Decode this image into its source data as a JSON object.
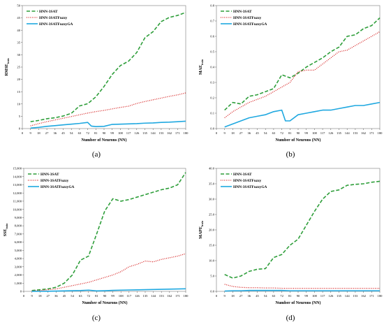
{
  "figure": {
    "captions": [
      "(a)",
      "(b)",
      "(c)",
      "(d)"
    ]
  },
  "series_style": [
    {
      "name": "HNN-3SAT",
      "color": "#2e9e3a",
      "dash": "5,2.5",
      "width": 1.6
    },
    {
      "name": "HNN-3SATFuzzy",
      "color": "#d62020",
      "dash": "1,1.6",
      "width": 1.3
    },
    {
      "name": "HNN-3SATFuzzyGA",
      "color": "#1fa8e0",
      "dash": "",
      "width": 1.6
    }
  ],
  "chart_data": [
    {
      "type": "line",
      "panel": "(a)",
      "xlabel": "Number of Neurons (NN)",
      "ylabel_main": "RMSE",
      "ylabel_sub": "train",
      "x": [
        9,
        18,
        27,
        36,
        45,
        54,
        63,
        72,
        81,
        90,
        99,
        108,
        117,
        126,
        135,
        144,
        153,
        162,
        171,
        180
      ],
      "xticks": [
        0,
        9,
        18,
        27,
        36,
        45,
        54,
        63,
        72,
        81,
        90,
        99,
        108,
        117,
        126,
        135,
        144,
        153,
        162,
        171,
        180
      ],
      "xlim": [
        0,
        180
      ],
      "ylim": [
        0,
        50
      ],
      "yticks": [
        0,
        5,
        10,
        15,
        20,
        25,
        30,
        35,
        40,
        45,
        50
      ],
      "ytick_labels": [
        "0",
        "5",
        "10",
        "15",
        "20",
        "25",
        "30",
        "35",
        "40",
        "45",
        "50"
      ],
      "legend": "top-left",
      "series": [
        {
          "name": "HNN-3SAT",
          "x": [
            9,
            18,
            27,
            36,
            45,
            54,
            63,
            72,
            81,
            90,
            99,
            108,
            117,
            126,
            135,
            144,
            153,
            162,
            171,
            180
          ],
          "values": [
            2.8,
            3.3,
            4.0,
            4.4,
            5.1,
            6.2,
            9.2,
            10.1,
            12.9,
            17.1,
            22.0,
            25.6,
            27.4,
            30.9,
            36.9,
            39.4,
            43.5,
            45.2,
            46.0,
            47.2
          ]
        },
        {
          "name": "HNN-3SATFuzzy",
          "x": [
            9,
            18,
            27,
            36,
            45,
            54,
            63,
            72,
            81,
            90,
            99,
            108,
            117,
            126,
            135,
            144,
            153,
            162,
            171,
            180
          ],
          "values": [
            1.1,
            2.0,
            2.8,
            3.5,
            4.2,
            4.9,
            5.6,
            6.3,
            6.9,
            7.4,
            8.0,
            8.6,
            9.1,
            10.2,
            11.0,
            11.7,
            12.4,
            13.1,
            13.7,
            14.5
          ]
        },
        {
          "name": "HNN-3SATFuzzyGA",
          "x": [
            9,
            18,
            27,
            36,
            45,
            54,
            63,
            72,
            76,
            81,
            90,
            99,
            108,
            117,
            126,
            135,
            144,
            153,
            162,
            171,
            180
          ],
          "values": [
            0.2,
            0.5,
            0.9,
            1.2,
            1.5,
            1.8,
            2.1,
            2.5,
            1.0,
            0.8,
            0.9,
            1.7,
            1.8,
            1.9,
            2.0,
            2.2,
            2.3,
            2.5,
            2.6,
            2.8,
            3.0
          ]
        }
      ]
    },
    {
      "type": "line",
      "panel": "(b)",
      "xlabel": "Number of Neurons (NN)",
      "ylabel_main": "MAE",
      "ylabel_sub": "train",
      "x": [
        9,
        18,
        27,
        36,
        45,
        54,
        63,
        72,
        81,
        90,
        99,
        108,
        117,
        126,
        135,
        144,
        153,
        162,
        171,
        180
      ],
      "xticks": [
        0,
        9,
        18,
        27,
        36,
        45,
        54,
        63,
        72,
        81,
        90,
        99,
        108,
        117,
        126,
        135,
        144,
        153,
        162,
        171,
        180
      ],
      "xlim": [
        0,
        180
      ],
      "ylim": [
        0,
        0.8
      ],
      "yticks": [
        0,
        0.1,
        0.2,
        0.3,
        0.4,
        0.5,
        0.6,
        0.7,
        0.8
      ],
      "ytick_labels": [
        "0.0",
        "0.1",
        "0.2",
        "0.3",
        "0.4",
        "0.5",
        "0.6",
        "0.7",
        "0.8"
      ],
      "legend": "top-left",
      "series": [
        {
          "name": "HNN-3SAT",
          "x": [
            9,
            18,
            27,
            36,
            45,
            54,
            63,
            72,
            81,
            90,
            99,
            108,
            117,
            126,
            135,
            144,
            153,
            162,
            171,
            180
          ],
          "values": [
            0.12,
            0.17,
            0.16,
            0.21,
            0.22,
            0.24,
            0.26,
            0.35,
            0.33,
            0.36,
            0.4,
            0.43,
            0.46,
            0.5,
            0.53,
            0.6,
            0.61,
            0.65,
            0.67,
            0.72
          ]
        },
        {
          "name": "HNN-3SATFuzzy",
          "x": [
            9,
            18,
            27,
            36,
            45,
            54,
            63,
            72,
            81,
            90,
            99,
            108,
            117,
            126,
            135,
            144,
            153,
            162,
            171,
            180
          ],
          "values": [
            0.07,
            0.11,
            0.14,
            0.17,
            0.19,
            0.21,
            0.24,
            0.27,
            0.3,
            0.37,
            0.38,
            0.38,
            0.42,
            0.46,
            0.5,
            0.51,
            0.54,
            0.57,
            0.6,
            0.63
          ]
        },
        {
          "name": "HNN-3SATFuzzyGA",
          "x": [
            9,
            18,
            27,
            36,
            45,
            54,
            63,
            72,
            76,
            81,
            90,
            99,
            108,
            117,
            126,
            135,
            144,
            153,
            162,
            171,
            180
          ],
          "values": [
            0.01,
            0.03,
            0.05,
            0.07,
            0.08,
            0.09,
            0.11,
            0.12,
            0.05,
            0.05,
            0.09,
            0.1,
            0.11,
            0.12,
            0.12,
            0.13,
            0.14,
            0.15,
            0.15,
            0.16,
            0.17
          ]
        }
      ]
    },
    {
      "type": "line",
      "panel": "(c)",
      "xlabel": "Number of Neurons (NN)",
      "ylabel_main": "SSE",
      "ylabel_sub": "train",
      "x": [
        9,
        18,
        27,
        36,
        45,
        54,
        63,
        72,
        81,
        90,
        99,
        108,
        117,
        126,
        135,
        144,
        153,
        162,
        171,
        180
      ],
      "xticks": [
        0,
        9,
        18,
        27,
        36,
        45,
        54,
        63,
        72,
        81,
        90,
        99,
        108,
        117,
        126,
        135,
        144,
        153,
        162,
        171,
        180
      ],
      "xlim": [
        0,
        180
      ],
      "ylim": [
        0,
        15000
      ],
      "yticks": [
        0,
        1000,
        2000,
        3000,
        4000,
        5000,
        6000,
        7000,
        8000,
        9000,
        10000,
        11000,
        12000,
        13000,
        14000,
        15000
      ],
      "ytick_labels": [
        "0",
        "1,000",
        "2,000",
        "3,000",
        "4,000",
        "5,000",
        "6,000",
        "7,000",
        "8,000",
        "9,000",
        "10,000",
        "11,000",
        "12,000",
        "13,000",
        "14,000",
        "15,000"
      ],
      "legend": "top-left",
      "series": [
        {
          "name": "HNN-3SAT",
          "x": [
            9,
            18,
            27,
            36,
            45,
            54,
            63,
            72,
            81,
            90,
            99,
            108,
            117,
            126,
            135,
            144,
            153,
            162,
            171,
            180
          ],
          "values": [
            100,
            200,
            300,
            500,
            1000,
            2000,
            3800,
            4300,
            7000,
            9800,
            11300,
            11000,
            11200,
            11500,
            11800,
            12100,
            12400,
            12600,
            13000,
            14500
          ]
        },
        {
          "name": "HNN-3SATFuzzy",
          "x": [
            9,
            18,
            27,
            36,
            45,
            54,
            63,
            72,
            81,
            90,
            99,
            108,
            117,
            126,
            135,
            144,
            153,
            162,
            171,
            180
          ],
          "values": [
            50,
            100,
            200,
            300,
            500,
            700,
            900,
            1100,
            1400,
            1700,
            2000,
            2400,
            3000,
            3300,
            3700,
            3600,
            3900,
            4100,
            4300,
            4600
          ]
        },
        {
          "name": "HNN-3SATFuzzyGA",
          "x": [
            9,
            18,
            27,
            36,
            45,
            54,
            63,
            72,
            81,
            90,
            99,
            108,
            117,
            126,
            135,
            144,
            153,
            162,
            171,
            180
          ],
          "values": [
            5,
            10,
            20,
            40,
            60,
            80,
            100,
            150,
            60,
            80,
            120,
            150,
            170,
            190,
            210,
            230,
            250,
            270,
            290,
            310
          ]
        }
      ]
    },
    {
      "type": "line",
      "panel": "(d)",
      "xlabel": "Number of Neurons (NN)",
      "ylabel_main": "MAPE",
      "ylabel_sub": "train",
      "x": [
        9,
        18,
        27,
        36,
        45,
        54,
        63,
        72,
        81,
        90,
        99,
        108,
        117,
        126,
        135,
        144,
        153,
        162,
        171,
        180
      ],
      "xticks": [
        0,
        9,
        18,
        27,
        36,
        45,
        54,
        63,
        72,
        81,
        90,
        99,
        108,
        117,
        126,
        135,
        144,
        153,
        162,
        171,
        180
      ],
      "xlim": [
        0,
        180
      ],
      "ylim": [
        0,
        40
      ],
      "yticks": [
        0,
        5,
        10,
        15,
        20,
        25,
        30,
        35,
        40
      ],
      "ytick_labels": [
        "0.0",
        "5.0",
        "10.0",
        "15.0",
        "20.0",
        "25.0",
        "30.0",
        "35.0",
        "40.0"
      ],
      "legend": "top-left",
      "series": [
        {
          "name": "HNN-3SAT",
          "x": [
            9,
            18,
            27,
            36,
            45,
            54,
            63,
            72,
            81,
            90,
            99,
            108,
            117,
            126,
            135,
            144,
            153,
            162,
            171,
            180
          ],
          "values": [
            5.5,
            4.3,
            5.0,
            6.5,
            7.2,
            7.4,
            11.0,
            12.0,
            15.0,
            17.0,
            21.5,
            26.0,
            30.0,
            32.5,
            33.0,
            34.5,
            34.8,
            35.0,
            35.5,
            35.8
          ]
        },
        {
          "name": "HNN-3SATFuzzy",
          "x": [
            9,
            18,
            27,
            36,
            45,
            54,
            63,
            72,
            81,
            90,
            99,
            108,
            117,
            126,
            135,
            144,
            153,
            162,
            171,
            180
          ],
          "values": [
            2.3,
            1.6,
            1.3,
            1.2,
            1.2,
            1.1,
            1.1,
            1.0,
            1.0,
            1.0,
            1.0,
            1.0,
            1.0,
            1.0,
            1.0,
            1.0,
            1.0,
            1.0,
            1.0,
            1.0
          ]
        },
        {
          "name": "HNN-3SATFuzzyGA",
          "x": [
            9,
            18,
            27,
            36,
            45,
            54,
            63,
            72,
            81,
            90,
            99,
            108,
            117,
            126,
            135,
            144,
            153,
            162,
            171,
            180
          ],
          "values": [
            0.1,
            0.2,
            0.2,
            0.3,
            0.3,
            0.3,
            0.3,
            0.3,
            0.2,
            0.2,
            0.2,
            0.2,
            0.2,
            0.2,
            0.2,
            0.2,
            0.2,
            0.2,
            0.2,
            0.2
          ]
        }
      ]
    }
  ]
}
